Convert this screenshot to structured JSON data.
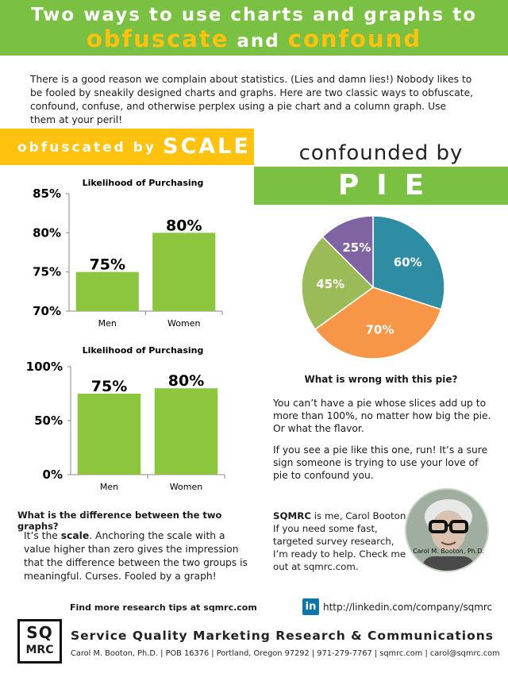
{
  "header": {
    "line1": "Two ways to use charts and graphs to",
    "word1": "obfuscate",
    "joiner": " and ",
    "word2": "confound"
  },
  "intro": "There is a good reason we complain about statistics. (Lies and damn lies!) Nobody likes to be fooled by sneakily designed charts and graphs.  Here are two classic ways to obfuscate, confound, confuse, and otherwise perplex using a pie chart and a column graph. Use them at your peril!",
  "scale_section": {
    "banner_small": "obfuscated by",
    "banner_big": "SCALE",
    "question": "What is the difference between the two graphs?",
    "answer_pre": "It’s the ",
    "answer_bold": "scale",
    "answer_post": ". Anchoring the scale with a value higher than zero gives the impression that the difference between the two groups is meaningful. Curses. Fooled by a graph!"
  },
  "pie_section": {
    "heading": "confounded by",
    "banner": "PIE",
    "question": "What is wrong with this pie?",
    "text1": "You can’t have a pie whose slices add up to more than 100%, no matter how big the pie. Or what the flavor.",
    "text2": "If you see a pie like this one, run! It’s a sure sign someone is trying to use your love of pie to confound you."
  },
  "about": {
    "name_bold": "SQMRC",
    "text": " is me, Carol Booton. If you need some fast, targeted survey research, I’m ready to help. Check me out at sqmrc.com.",
    "photo_caption": "Carol M. Booton, Ph.D."
  },
  "footer": {
    "tips": "Find more research tips at sqmrc.com",
    "linkedin_icon": "in",
    "linkedin_url": "http://linkedin.com/company/sqmrc",
    "logo_line1": "SQ",
    "logo_line2": "MRC",
    "company": "Service Quality Marketing Research & Communications",
    "contact": "Carol M. Booton, Ph.D.  |  POB 16376  |  Portland, Oregon 97292  |  971-279-7767  |  sqmrc.com | carol@sqmrc.com"
  },
  "colors": {
    "green": "#7ac043",
    "gold": "#ffc20e",
    "bar": "#8cc63f",
    "pie_blue": "#2e8ca3",
    "pie_orange": "#f79646",
    "pie_olive": "#9bbb59",
    "pie_purple": "#8064a2"
  },
  "chart_data": [
    {
      "type": "bar",
      "title": "Likelihood of Purchasing",
      "categories": [
        "Men",
        "Women"
      ],
      "values": [
        75,
        80
      ],
      "data_labels": [
        "75%",
        "80%"
      ],
      "ylim": [
        70,
        85
      ],
      "yticks": [
        "70%",
        "75%",
        "80%",
        "85%"
      ],
      "grid": false
    },
    {
      "type": "bar",
      "title": "Likelihood of Purchasing",
      "categories": [
        "Men",
        "Women"
      ],
      "values": [
        75,
        80
      ],
      "data_labels": [
        "75%",
        "80%"
      ],
      "ylim": [
        0,
        100
      ],
      "yticks": [
        "0%",
        "50%",
        "100%"
      ],
      "grid": false
    },
    {
      "type": "pie",
      "values": [
        60,
        70,
        45,
        25
      ],
      "labels": [
        "60%",
        "70%",
        "45%",
        "25%"
      ],
      "colors": [
        "#2e8ca3",
        "#f79646",
        "#9bbb59",
        "#8064a2"
      ]
    }
  ]
}
